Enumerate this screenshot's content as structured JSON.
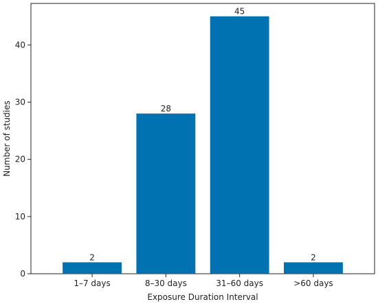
{
  "chart_data": {
    "type": "bar",
    "categories": [
      "1–7 days",
      "8–30 days",
      "31–60 days",
      ">60 days"
    ],
    "values": [
      2,
      28,
      45,
      2
    ],
    "data_labels": [
      "2",
      "28",
      "45",
      "2"
    ],
    "xlabel": "Exposure Duration Interval",
    "ylabel": "Number of studies",
    "ylim": [
      0,
      47.25
    ],
    "yticks": [
      0,
      10,
      20,
      30,
      40
    ],
    "bar_color": "#0072b2",
    "grid": false,
    "legend": "none"
  }
}
